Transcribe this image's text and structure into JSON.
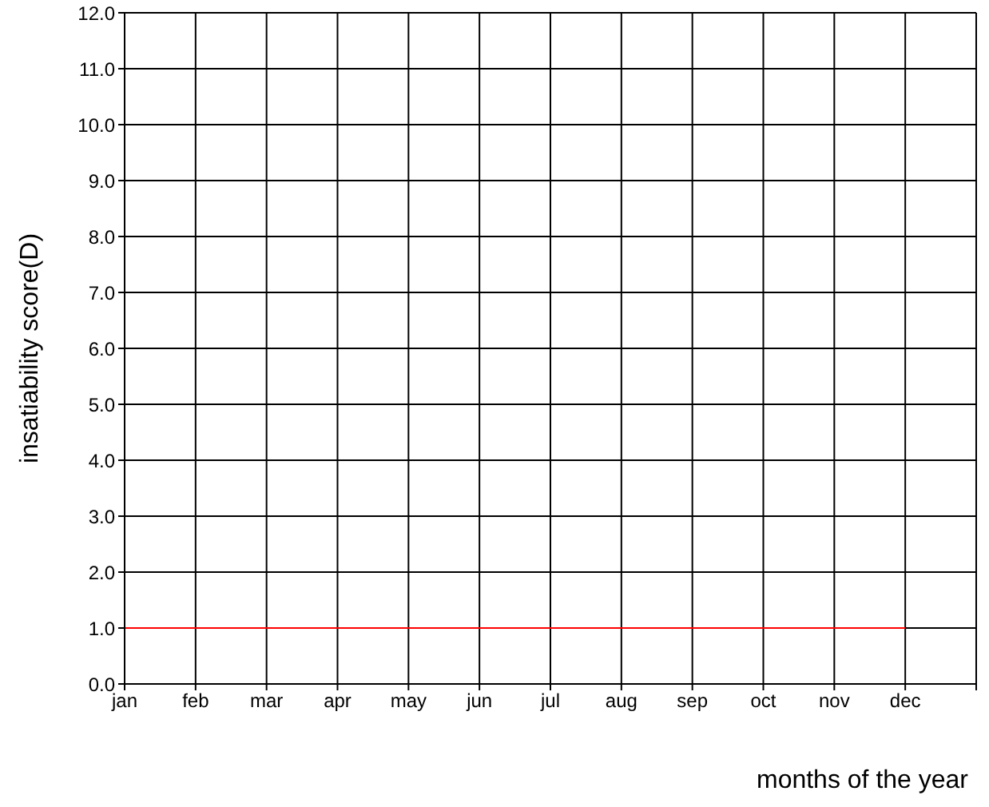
{
  "chart_data": {
    "type": "line",
    "xlabel": "months of the year",
    "ylabel": "insatiability score(D)",
    "categories": [
      "jan",
      "feb",
      "mar",
      "apr",
      "may",
      "jun",
      "jul",
      "aug",
      "sep",
      "oct",
      "nov",
      "dec",
      null
    ],
    "series": [
      {
        "color": "#ff0000",
        "values": [
          1,
          1,
          1,
          1,
          1,
          1,
          1,
          1,
          1,
          1,
          1,
          1,
          null
        ]
      }
    ],
    "ylim": [
      0,
      12
    ],
    "yticks": [
      {
        "value": 0,
        "label": "0.0"
      },
      {
        "value": 1,
        "label": "1.0"
      },
      {
        "value": 2,
        "label": "2.0"
      },
      {
        "value": 3,
        "label": "3.0"
      },
      {
        "value": 4,
        "label": "4.0"
      },
      {
        "value": 5,
        "label": "5.0"
      },
      {
        "value": 6,
        "label": "6.0"
      },
      {
        "value": 7,
        "label": "7.0"
      },
      {
        "value": 8,
        "label": "8.0"
      },
      {
        "value": 9,
        "label": "9.0"
      },
      {
        "value": 10,
        "label": "10.0"
      },
      {
        "value": 11,
        "label": "11.0"
      },
      {
        "value": 12,
        "label": "12.0"
      }
    ],
    "grid": true,
    "legend": false,
    "marker": "none",
    "line_style": "solid"
  }
}
